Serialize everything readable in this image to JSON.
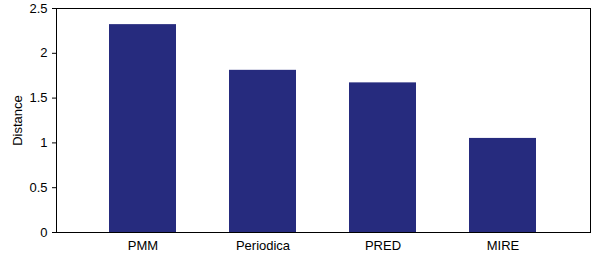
{
  "chart_data": {
    "type": "bar",
    "categories": [
      "PMM",
      "Periodica",
      "PRED",
      "MIRE"
    ],
    "values": [
      2.32,
      1.81,
      1.67,
      1.05
    ],
    "color": "#262b7e",
    "y_label": "Distance",
    "ylim": [
      0,
      2.5
    ],
    "yticks": [
      0,
      0.5,
      1,
      1.5,
      2,
      2.5
    ],
    "grid": false
  }
}
